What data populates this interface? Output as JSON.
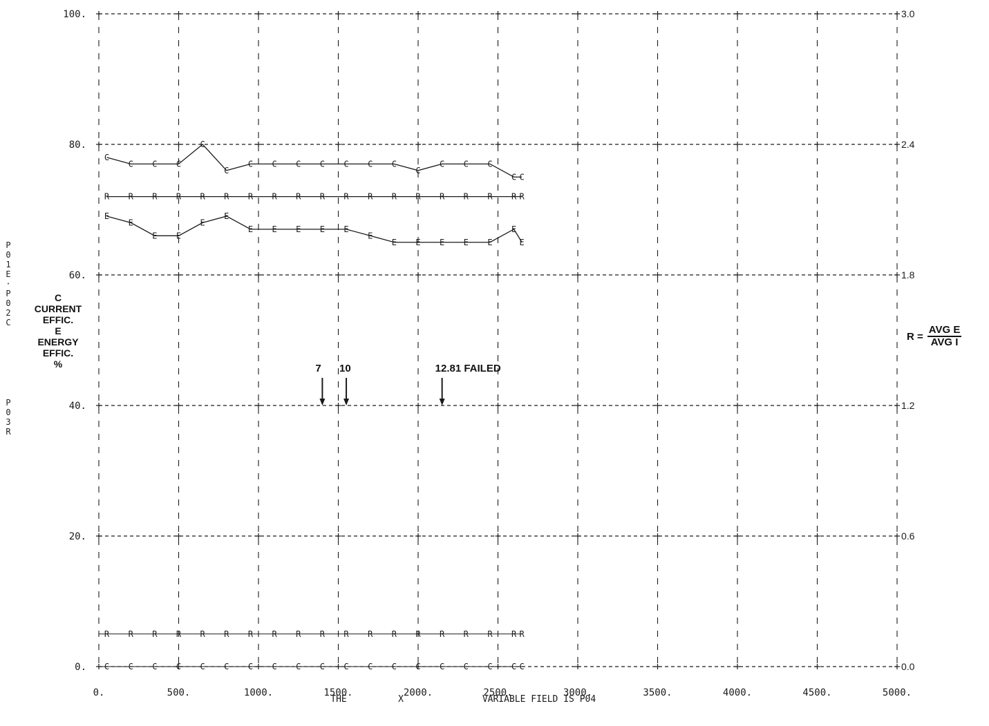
{
  "chart_data": {
    "type": "line",
    "x": [
      50,
      200,
      350,
      500,
      650,
      800,
      950,
      1100,
      1250,
      1400,
      1550,
      1700,
      1850,
      2000,
      2150,
      2300,
      2450,
      2600,
      2650
    ],
    "series": [
      {
        "name": "C",
        "values": [
          78,
          77,
          77,
          77,
          80,
          76,
          77,
          77,
          77,
          77,
          77,
          77,
          77,
          76,
          77,
          77,
          77,
          75,
          75
        ]
      },
      {
        "name": "E",
        "values": [
          69,
          68,
          66,
          66,
          68,
          69,
          67,
          67,
          67,
          67,
          67,
          66,
          65,
          65,
          65,
          65,
          65,
          67,
          65
        ]
      },
      {
        "name": "R",
        "values": [
          2.16,
          2.16,
          2.16,
          2.16,
          2.16,
          2.16,
          2.16,
          2.16,
          2.16,
          2.16,
          2.16,
          2.16,
          2.16,
          2.16,
          2.16,
          2.16,
          2.16,
          2.16,
          2.16
        ]
      }
    ],
    "bottom_rows": [
      {
        "name": "R",
        "y": 0.15
      },
      {
        "name": "C",
        "y": 0.0
      }
    ],
    "xlim": [
      0,
      5000
    ],
    "ylim": [
      0,
      100
    ],
    "y2lim": [
      0,
      3.0
    ],
    "x_ticks": [
      "0.",
      "500.",
      "1000.",
      "1500.",
      "2000.",
      "2500.",
      "3000.",
      "3500.",
      "4000.",
      "4500.",
      "5000."
    ],
    "y_ticks": [
      "0.",
      "20.",
      "40.",
      "60.",
      "80.",
      "100."
    ],
    "y2_ticks": [
      "0.0",
      "0.6",
      "1.2",
      "1.8",
      "2.4",
      "3.0"
    ],
    "grid": true,
    "xlabel_words": [
      "THE",
      "X",
      "VARIABLE FIELD IS P04"
    ],
    "y_axis_code_upper": [
      "P",
      "0",
      "1",
      "E",
      "·",
      "P",
      "0",
      "2",
      "C"
    ],
    "y_axis_code_lower": [
      "P",
      "0",
      "3",
      "R"
    ],
    "legend_lines": [
      "C",
      "CURRENT",
      "EFFIC.",
      "E",
      "ENERGY",
      "EFFIC.",
      "%"
    ],
    "ratio_label": {
      "prefix": "R =",
      "numerator": "AVG E",
      "denominator": "AVG I"
    },
    "annotations": [
      {
        "label": "7",
        "x": 1400,
        "y": 40
      },
      {
        "label": "10",
        "x": 1550,
        "y": 40
      },
      {
        "label": "12.81 FAILED",
        "x": 2150,
        "y": 40
      }
    ],
    "colors": {
      "ink": "#1a1a1a",
      "background": "#ffffff"
    }
  }
}
